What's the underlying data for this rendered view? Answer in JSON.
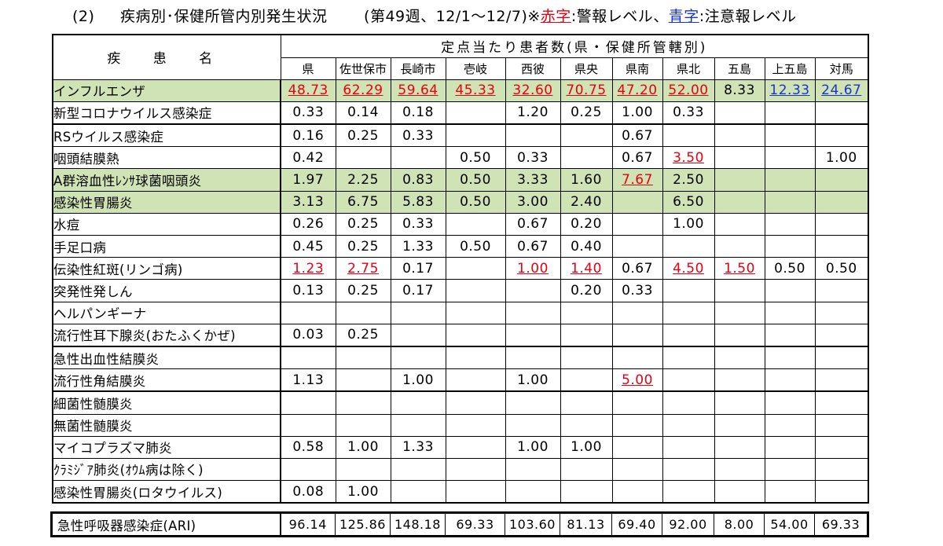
{
  "title": {
    "number": "(2)",
    "text": "疾病別･保健所管内別発生状況",
    "period": "(第49週、12/1～12/7)※",
    "red_label": "赤字",
    "mid": ":警報レベル、",
    "blue_label": "青字",
    "end": ":注意報レベル"
  },
  "header": {
    "disease_col": "疾 患 名",
    "group": "定点当たり患者数(県・保健所管轄別)",
    "regions": [
      "県",
      "佐世保市",
      "長崎市",
      "壱岐",
      "西彼",
      "県央",
      "県南",
      "県北",
      "五島",
      "上五島",
      "対馬"
    ]
  },
  "colors": {
    "alert": "#e60012",
    "caution": "#1a33cc",
    "highlight": "#cfe3b4"
  },
  "rows": [
    {
      "name": "インフルエンザ",
      "green": true,
      "cells": [
        [
          "48.73",
          "r"
        ],
        [
          "62.29",
          "r"
        ],
        [
          "59.64",
          "r"
        ],
        [
          "45.33",
          "r"
        ],
        [
          "32.60",
          "r"
        ],
        [
          "70.75",
          "r"
        ],
        [
          "47.20",
          "r"
        ],
        [
          "52.00",
          "r"
        ],
        [
          "8.33",
          ""
        ],
        [
          "12.33",
          "b"
        ],
        [
          "24.67",
          "b"
        ]
      ]
    },
    {
      "name": "新型コロナウイルス感染症",
      "cells": [
        [
          "0.33",
          ""
        ],
        [
          "0.14",
          ""
        ],
        [
          "0.18",
          ""
        ],
        [
          "",
          ""
        ],
        [
          "1.20",
          ""
        ],
        [
          "0.25",
          ""
        ],
        [
          "1.00",
          ""
        ],
        [
          "0.33",
          ""
        ],
        [
          "",
          ""
        ],
        [
          "",
          ""
        ],
        [
          "",
          ""
        ]
      ]
    },
    {
      "name": "RSウイルス感染症",
      "thick": true,
      "cells": [
        [
          "0.16",
          ""
        ],
        [
          "0.25",
          ""
        ],
        [
          "0.33",
          ""
        ],
        [
          "",
          ""
        ],
        [
          "",
          ""
        ],
        [
          "",
          ""
        ],
        [
          "0.67",
          ""
        ],
        [
          "",
          ""
        ],
        [
          "",
          ""
        ],
        [
          "",
          ""
        ],
        [
          "",
          ""
        ]
      ]
    },
    {
      "name": "咽頭結膜熱",
      "cells": [
        [
          "0.42",
          ""
        ],
        [
          "",
          ""
        ],
        [
          "",
          ""
        ],
        [
          "0.50",
          ""
        ],
        [
          "0.33",
          ""
        ],
        [
          "",
          ""
        ],
        [
          "0.67",
          ""
        ],
        [
          "3.50",
          "r"
        ],
        [
          "",
          ""
        ],
        [
          "",
          ""
        ],
        [
          "1.00",
          ""
        ]
      ]
    },
    {
      "name": "A群溶血性ﾚﾝｻ球菌咽頭炎",
      "green": true,
      "cells": [
        [
          "1.97",
          ""
        ],
        [
          "2.25",
          ""
        ],
        [
          "0.83",
          ""
        ],
        [
          "0.50",
          ""
        ],
        [
          "3.33",
          ""
        ],
        [
          "1.60",
          ""
        ],
        [
          "7.67",
          "r"
        ],
        [
          "2.50",
          ""
        ],
        [
          "",
          ""
        ],
        [
          "",
          ""
        ],
        [
          "",
          ""
        ]
      ]
    },
    {
      "name": "感染性胃腸炎",
      "green": true,
      "cells": [
        [
          "3.13",
          ""
        ],
        [
          "6.75",
          ""
        ],
        [
          "5.83",
          ""
        ],
        [
          "0.50",
          ""
        ],
        [
          "3.00",
          ""
        ],
        [
          "2.40",
          ""
        ],
        [
          "",
          ""
        ],
        [
          "6.50",
          ""
        ],
        [
          "",
          ""
        ],
        [
          "",
          ""
        ],
        [
          "",
          ""
        ]
      ]
    },
    {
      "name": "水痘",
      "cells": [
        [
          "0.26",
          ""
        ],
        [
          "0.25",
          ""
        ],
        [
          "0.33",
          ""
        ],
        [
          "",
          ""
        ],
        [
          "0.67",
          ""
        ],
        [
          "0.20",
          ""
        ],
        [
          "",
          ""
        ],
        [
          "1.00",
          ""
        ],
        [
          "",
          ""
        ],
        [
          "",
          ""
        ],
        [
          "",
          ""
        ]
      ]
    },
    {
      "name": "手足口病",
      "cells": [
        [
          "0.45",
          ""
        ],
        [
          "0.25",
          ""
        ],
        [
          "1.33",
          ""
        ],
        [
          "0.50",
          ""
        ],
        [
          "0.67",
          ""
        ],
        [
          "0.40",
          ""
        ],
        [
          "",
          ""
        ],
        [
          "",
          ""
        ],
        [
          "",
          ""
        ],
        [
          "",
          ""
        ],
        [
          "",
          ""
        ]
      ]
    },
    {
      "name": "伝染性紅斑(リンゴ病)",
      "cells": [
        [
          "1.23",
          "r"
        ],
        [
          "2.75",
          "r"
        ],
        [
          "0.17",
          ""
        ],
        [
          "",
          ""
        ],
        [
          "1.00",
          "r"
        ],
        [
          "1.40",
          "r"
        ],
        [
          "0.67",
          ""
        ],
        [
          "4.50",
          "r"
        ],
        [
          "1.50",
          "r"
        ],
        [
          "0.50",
          ""
        ],
        [
          "0.50",
          ""
        ]
      ]
    },
    {
      "name": "突発性発しん",
      "cells": [
        [
          "0.13",
          ""
        ],
        [
          "0.25",
          ""
        ],
        [
          "0.17",
          ""
        ],
        [
          "",
          ""
        ],
        [
          "",
          ""
        ],
        [
          "0.20",
          ""
        ],
        [
          "0.33",
          ""
        ],
        [
          "",
          ""
        ],
        [
          "",
          ""
        ],
        [
          "",
          ""
        ],
        [
          "",
          ""
        ]
      ]
    },
    {
      "name": "ヘルパンギーナ",
      "cells": [
        [
          "",
          ""
        ],
        [
          "",
          ""
        ],
        [
          "",
          ""
        ],
        [
          "",
          ""
        ],
        [
          "",
          ""
        ],
        [
          "",
          ""
        ],
        [
          "",
          ""
        ],
        [
          "",
          ""
        ],
        [
          "",
          ""
        ],
        [
          "",
          ""
        ],
        [
          "",
          ""
        ]
      ]
    },
    {
      "name": "流行性耳下腺炎(おたふくかぜ)",
      "cells": [
        [
          "0.03",
          ""
        ],
        [
          "0.25",
          ""
        ],
        [
          "",
          ""
        ],
        [
          "",
          ""
        ],
        [
          "",
          ""
        ],
        [
          "",
          ""
        ],
        [
          "",
          ""
        ],
        [
          "",
          ""
        ],
        [
          "",
          ""
        ],
        [
          "",
          ""
        ],
        [
          "",
          ""
        ]
      ]
    },
    {
      "name": "急性出血性結膜炎",
      "thick": true,
      "cells": [
        [
          "",
          ""
        ],
        [
          "",
          ""
        ],
        [
          "",
          ""
        ],
        [
          "",
          ""
        ],
        [
          "",
          ""
        ],
        [
          "",
          ""
        ],
        [
          "",
          ""
        ],
        [
          "",
          ""
        ],
        [
          "",
          ""
        ],
        [
          "",
          ""
        ],
        [
          "",
          ""
        ]
      ]
    },
    {
      "name": "流行性角結膜炎",
      "cells": [
        [
          "1.13",
          ""
        ],
        [
          "",
          ""
        ],
        [
          "1.00",
          ""
        ],
        [
          "",
          ""
        ],
        [
          "1.00",
          ""
        ],
        [
          "",
          ""
        ],
        [
          "5.00",
          "r"
        ],
        [
          "",
          ""
        ],
        [
          "",
          ""
        ],
        [
          "",
          ""
        ],
        [
          "",
          ""
        ]
      ]
    },
    {
      "name": "細菌性髄膜炎",
      "thick": true,
      "cells": [
        [
          "",
          ""
        ],
        [
          "",
          ""
        ],
        [
          "",
          ""
        ],
        [
          "",
          ""
        ],
        [
          "",
          ""
        ],
        [
          "",
          ""
        ],
        [
          "",
          ""
        ],
        [
          "",
          ""
        ],
        [
          "",
          ""
        ],
        [
          "",
          ""
        ],
        [
          "",
          ""
        ]
      ]
    },
    {
      "name": "無菌性髄膜炎",
      "cells": [
        [
          "",
          ""
        ],
        [
          "",
          ""
        ],
        [
          "",
          ""
        ],
        [
          "",
          ""
        ],
        [
          "",
          ""
        ],
        [
          "",
          ""
        ],
        [
          "",
          ""
        ],
        [
          "",
          ""
        ],
        [
          "",
          ""
        ],
        [
          "",
          ""
        ],
        [
          "",
          ""
        ]
      ]
    },
    {
      "name": "マイコプラズマ肺炎",
      "cells": [
        [
          "0.58",
          ""
        ],
        [
          "1.00",
          ""
        ],
        [
          "1.33",
          ""
        ],
        [
          "",
          ""
        ],
        [
          "1.00",
          ""
        ],
        [
          "1.00",
          ""
        ],
        [
          "",
          ""
        ],
        [
          "",
          ""
        ],
        [
          "",
          ""
        ],
        [
          "",
          ""
        ],
        [
          "",
          ""
        ]
      ]
    },
    {
      "name": "ｸﾗﾐｼﾞｱ肺炎(ｵｳﾑ病は除く)",
      "cells": [
        [
          "",
          ""
        ],
        [
          "",
          ""
        ],
        [
          "",
          ""
        ],
        [
          "",
          ""
        ],
        [
          "",
          ""
        ],
        [
          "",
          ""
        ],
        [
          "",
          ""
        ],
        [
          "",
          ""
        ],
        [
          "",
          ""
        ],
        [
          "",
          ""
        ],
        [
          "",
          ""
        ]
      ]
    },
    {
      "name": "感染性胃腸炎(ロタウイルス)",
      "cells": [
        [
          "0.08",
          ""
        ],
        [
          "1.00",
          ""
        ],
        [
          "",
          ""
        ],
        [
          "",
          ""
        ],
        [
          "",
          ""
        ],
        [
          "",
          ""
        ],
        [
          "",
          ""
        ],
        [
          "",
          ""
        ],
        [
          "",
          ""
        ],
        [
          "",
          ""
        ],
        [
          "",
          ""
        ]
      ]
    }
  ],
  "ari": {
    "name": "急性呼吸器感染症(ARI)",
    "values": [
      "96.14",
      "125.86",
      "148.18",
      "69.33",
      "103.60",
      "81.13",
      "69.40",
      "92.00",
      "8.00",
      "54.00",
      "69.33"
    ]
  }
}
